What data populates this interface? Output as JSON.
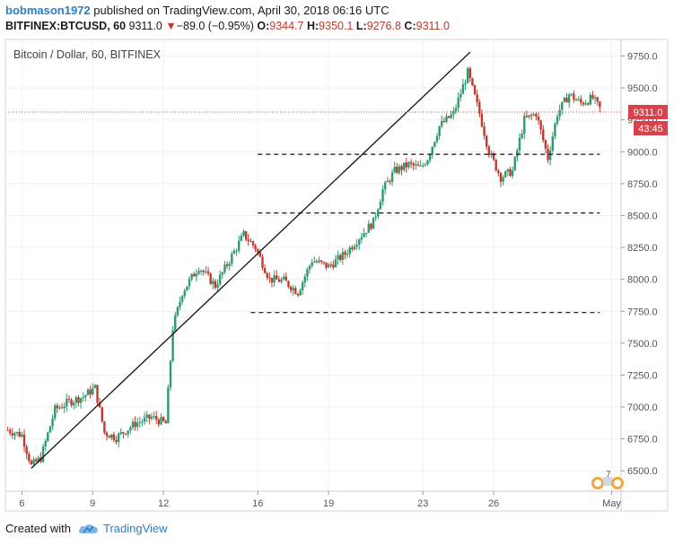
{
  "header": {
    "author": "bobmason1972",
    "published_text": "published on TradingView.com, April 30, 2018 06:16 UTC",
    "symbol": "BITFINEX:BTCUSD, 60",
    "last": "9311.0",
    "change": "−89.0 (−0.95%)",
    "o_label": "O:",
    "o_value": "9344.7",
    "h_label": "H:",
    "h_value": "9350.1",
    "l_label": "L:",
    "l_value": "9276.8",
    "c_label": "C:",
    "c_value": "9311.0"
  },
  "footer": {
    "created_with": "Created with",
    "brand": "TradingView"
  },
  "colors": {
    "up": "#2e9a6e",
    "down": "#c0392b",
    "trendline": "#111111",
    "level_line": "#111111",
    "price_line": "#d9414b",
    "price_badge": "#d9414b"
  },
  "chart_data": {
    "type": "candlestick",
    "title": "Bitcoin / Dollar, 60, BITFINEX",
    "y_ticks": [
      "9750.0",
      "9500.0",
      "9250.0",
      "9000.0",
      "8750.0",
      "8500.0",
      "8250.0",
      "8000.0",
      "7750.0",
      "7500.0",
      "7250.0",
      "7000.0",
      "6750.0",
      "6500.0"
    ],
    "y_tick_values": [
      9750,
      9500,
      9250,
      9000,
      8750,
      8500,
      8250,
      8000,
      7750,
      7500,
      7250,
      7000,
      6750,
      6500
    ],
    "ylim": [
      6340,
      9880
    ],
    "x_ticks": [
      "6",
      "9",
      "12",
      "16",
      "19",
      "23",
      "26",
      "May"
    ],
    "x_tick_days": [
      6,
      9,
      12,
      16,
      19,
      23,
      26,
      31
    ],
    "xlim": [
      5.3,
      31.4
    ],
    "last_price": "9311.0",
    "last_price_value": 9311,
    "countdown": "43:45",
    "badge_number": "7",
    "trendline": {
      "x1": 6.4,
      "y1": 6520,
      "x2": 25.0,
      "y2": 9780
    },
    "horizontal_levels": [
      {
        "y": 8980,
        "x_from": 16.0,
        "x_to": 30.5
      },
      {
        "y": 8520,
        "x_from": 16.0,
        "x_to": 30.5
      },
      {
        "y": 7740,
        "x_from": 15.7,
        "x_to": 30.5
      }
    ],
    "price_path": [
      [
        5.4,
        6820
      ],
      [
        6.0,
        6780
      ],
      [
        6.4,
        6540
      ],
      [
        6.8,
        6600
      ],
      [
        7.4,
        6980
      ],
      [
        8.0,
        7040
      ],
      [
        8.6,
        7080
      ],
      [
        9.1,
        7150
      ],
      [
        9.5,
        6800
      ],
      [
        10.0,
        6760
      ],
      [
        10.8,
        6870
      ],
      [
        11.5,
        6920
      ],
      [
        12.1,
        6870
      ],
      [
        12.4,
        7620
      ],
      [
        12.8,
        7900
      ],
      [
        13.5,
        8100
      ],
      [
        14.2,
        7950
      ],
      [
        14.8,
        8150
      ],
      [
        15.4,
        8350
      ],
      [
        15.9,
        8250
      ],
      [
        16.5,
        8000
      ],
      [
        17.1,
        7990
      ],
      [
        17.7,
        7900
      ],
      [
        18.3,
        8150
      ],
      [
        19.0,
        8100
      ],
      [
        19.7,
        8200
      ],
      [
        20.4,
        8350
      ],
      [
        20.9,
        8450
      ],
      [
        21.3,
        8700
      ],
      [
        21.8,
        8850
      ],
      [
        22.4,
        8900
      ],
      [
        22.9,
        8870
      ],
      [
        23.2,
        8950
      ],
      [
        23.7,
        9200
      ],
      [
        24.3,
        9300
      ],
      [
        24.9,
        9620
      ],
      [
        25.4,
        9300
      ],
      [
        25.8,
        9000
      ],
      [
        26.3,
        8800
      ],
      [
        26.8,
        8850
      ],
      [
        27.3,
        9250
      ],
      [
        27.8,
        9300
      ],
      [
        28.3,
        8950
      ],
      [
        28.7,
        9300
      ],
      [
        29.2,
        9450
      ],
      [
        29.7,
        9380
      ],
      [
        30.2,
        9420
      ],
      [
        30.6,
        9311
      ]
    ]
  }
}
